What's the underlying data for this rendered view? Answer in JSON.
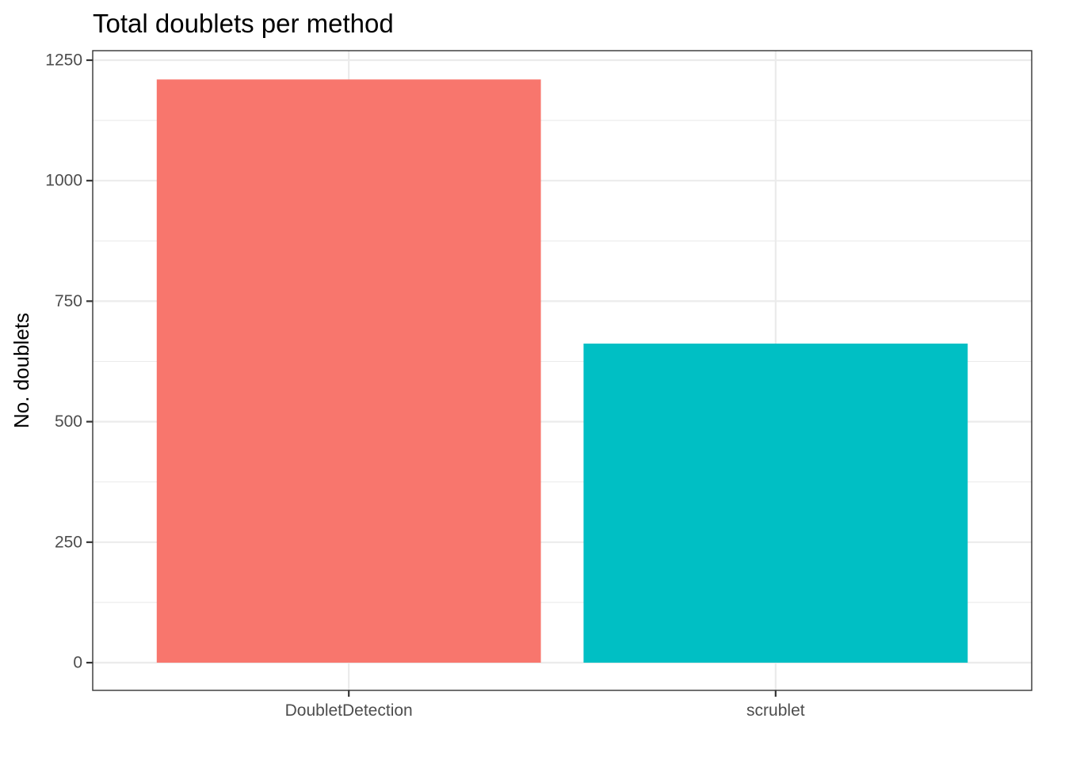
{
  "chart_data": {
    "type": "bar",
    "title": "Total doublets per method",
    "xlabel": "",
    "ylabel": "No. doublets",
    "categories": [
      "DoubletDetection",
      "scrublet"
    ],
    "values": [
      1210,
      662
    ],
    "colors": [
      "#F8766D",
      "#00BFC4"
    ],
    "ylim": [
      0,
      1250
    ],
    "yticks": [
      0,
      250,
      500,
      750,
      1000,
      1250
    ],
    "ytick_labels": [
      "0",
      "250",
      "500",
      "750",
      "1000",
      "1250"
    ],
    "grid": true,
    "legend": "none"
  }
}
